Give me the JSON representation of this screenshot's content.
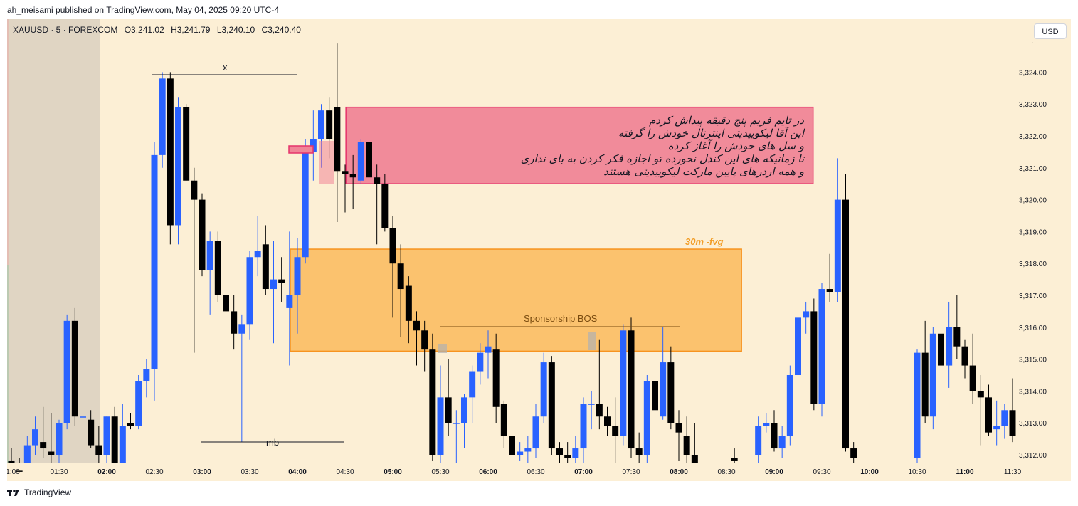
{
  "header": {
    "publisher_line": "ah_meisami published on TradingView.com, May 04, 2025 09:20 UTC-4"
  },
  "symbol": {
    "name": "XAUUSD · 5 · FOREXCOM",
    "open": "O3,241.02",
    "high": "H3,241.79",
    "low": "L3,240.10",
    "close": "C3,240.40"
  },
  "currency_button": "USD",
  "footer": {
    "brand": "TradingView"
  },
  "colors": {
    "background": "#fcefd5",
    "session_shade": "#e0d5c3",
    "bull": "#2962ff",
    "bear": "#000000",
    "pink_zone": "#f08597",
    "pink_border": "#e5336b",
    "orange_zone": "#fbbf68",
    "orange_border": "#f7931e",
    "axis_text": "#131722"
  },
  "annotations": {
    "persian_lines": [
      "در تایم فریم پنج دقیقه پیداش کردم",
      "این آقا لیکوییدیتی اینترنال خودش را گرفته",
      "و سل های خودش را آغاز کرده",
      "تا زمانیکه های این کندل نخورده تو اجازه فکر کردن به بای نداری",
      "و همه اردرهای پایین مارکت لیکوییدیتی هستند"
    ],
    "fvg_label": "30m -fvg",
    "bos_label": "Sponsorship BOS",
    "x_label": "x",
    "mb_label": "mb"
  },
  "chart_data": {
    "type": "candlestick",
    "symbol": "XAUUSD",
    "interval": "5",
    "price_axis": {
      "ticks": [
        "3,312.00",
        "3,313.00",
        "3,314.00",
        "3,315.00",
        "3,316.00",
        "3,317.00",
        "3,318.00",
        "3,319.00",
        "3,320.00",
        "3,321.00",
        "3,322.00",
        "3,323.00",
        "3,324.00"
      ],
      "ylim": [
        3311.8,
        3325.2
      ]
    },
    "time_axis": {
      "ticks": [
        "1:00",
        "01:30",
        "02:00",
        "02:30",
        "03:00",
        "03:30",
        "04:00",
        "04:30",
        "05:00",
        "05:30",
        "06:00",
        "06:30",
        "07:00",
        "07:30",
        "08:00",
        "08:30",
        "09:00",
        "09:30",
        "10:00",
        "10:30",
        "11:00",
        "11:30"
      ]
    },
    "candles": [
      [
        "00:55",
        3312.8,
        3313.0,
        3311.5,
        3311.8
      ],
      [
        "01:00",
        3311.8,
        3312.2,
        3311.3,
        3311.6
      ],
      [
        "01:05",
        3311.5,
        3311.9,
        3311.2,
        3311.4
      ],
      [
        "01:10",
        3311.4,
        3312.6,
        3311.2,
        3312.3
      ],
      [
        "01:15",
        3312.3,
        3313.2,
        3312.0,
        3312.8
      ],
      [
        "01:20",
        3312.4,
        3313.5,
        3311.9,
        3312.2
      ],
      [
        "01:25",
        3312.1,
        3313.3,
        3311.5,
        3312.0
      ],
      [
        "01:30",
        3312.0,
        3313.1,
        3311.4,
        3313.0
      ],
      [
        "01:35",
        3313.0,
        3316.4,
        3312.8,
        3316.2
      ],
      [
        "01:40",
        3316.2,
        3316.6,
        3312.9,
        3313.2
      ],
      [
        "01:45",
        3313.2,
        3313.5,
        3312.9,
        3313.2
      ],
      [
        "01:50",
        3313.1,
        3313.4,
        3312.2,
        3312.3
      ],
      [
        "01:55",
        3312.3,
        3312.9,
        3311.6,
        3312.0
      ],
      [
        "02:00",
        3312.0,
        3313.2,
        3311.5,
        3313.2
      ],
      [
        "02:05",
        3313.2,
        3313.5,
        3311.3,
        3311.5
      ],
      [
        "02:10",
        3311.6,
        3313.6,
        3311.4,
        3312.9
      ],
      [
        "02:15",
        3313.0,
        3313.3,
        3312.8,
        3312.9
      ],
      [
        "02:20",
        3312.9,
        3314.5,
        3312.8,
        3314.3
      ],
      [
        "02:25",
        3314.3,
        3315.0,
        3313.8,
        3314.7
      ],
      [
        "02:30",
        3314.7,
        3321.8,
        3313.7,
        3321.4
      ],
      [
        "02:35",
        3321.4,
        3324.0,
        3321.0,
        3323.8
      ],
      [
        "02:40",
        3323.8,
        3324.0,
        3318.6,
        3319.2
      ],
      [
        "02:45",
        3319.2,
        3323.2,
        3318.6,
        3322.9
      ],
      [
        "02:50",
        3322.9,
        3323.0,
        3320.6,
        3320.6
      ],
      [
        "02:55",
        3320.6,
        3321.0,
        3315.2,
        3320.0
      ],
      [
        "03:00",
        3320.0,
        3320.2,
        3317.6,
        3317.8
      ],
      [
        "03:05",
        3317.8,
        3319.0,
        3316.4,
        3318.7
      ],
      [
        "03:10",
        3318.7,
        3319.0,
        3316.8,
        3317.0
      ],
      [
        "03:15",
        3317.0,
        3317.6,
        3315.6,
        3316.5
      ],
      [
        "03:20",
        3316.5,
        3317.0,
        3315.3,
        3315.8
      ],
      [
        "03:25",
        3315.8,
        3316.4,
        3312.4,
        3316.1
      ],
      [
        "03:30",
        3316.1,
        3318.4,
        3315.6,
        3318.2
      ],
      [
        "03:35",
        3318.2,
        3319.5,
        3317.6,
        3318.4
      ],
      [
        "03:40",
        3318.6,
        3319.2,
        3317.0,
        3317.2
      ],
      [
        "03:45",
        3317.2,
        3318.7,
        3315.5,
        3317.5
      ],
      [
        "03:50",
        3317.5,
        3318.2,
        3316.8,
        3317.4
      ],
      [
        "03:55",
        3316.6,
        3319.0,
        3314.8,
        3317.0
      ],
      [
        "04:00",
        3317.0,
        3318.8,
        3315.8,
        3318.2
      ],
      [
        "04:05",
        3318.2,
        3321.9,
        3318.0,
        3321.5
      ],
      [
        "04:10",
        3321.5,
        3322.8,
        3320.6,
        3321.9
      ],
      [
        "04:15",
        3321.9,
        3323.0,
        3321.0,
        3322.8
      ],
      [
        "04:20",
        3322.8,
        3323.2,
        3321.3,
        3321.9
      ],
      [
        "04:25",
        3322.9,
        3324.9,
        3319.3,
        3320.9
      ],
      [
        "04:30",
        3320.9,
        3321.1,
        3319.6,
        3320.8
      ],
      [
        "04:35",
        3320.8,
        3321.4,
        3319.7,
        3320.7
      ],
      [
        "04:40",
        3320.6,
        3321.9,
        3320.5,
        3321.8
      ],
      [
        "04:45",
        3321.8,
        3322.2,
        3320.4,
        3320.7
      ],
      [
        "04:50",
        3320.7,
        3321.1,
        3318.6,
        3320.5
      ],
      [
        "04:55",
        3320.5,
        3320.8,
        3319.0,
        3319.1
      ],
      [
        "05:00",
        3319.1,
        3319.5,
        3316.3,
        3318.0
      ],
      [
        "05:05",
        3318.0,
        3318.6,
        3315.7,
        3317.2
      ],
      [
        "05:10",
        3317.3,
        3317.6,
        3315.5,
        3316.2
      ],
      [
        "05:15",
        3316.2,
        3316.5,
        3314.8,
        3315.9
      ],
      [
        "05:20",
        3315.9,
        3316.2,
        3314.6,
        3315.3
      ],
      [
        "05:25",
        3315.3,
        3315.8,
        3311.8,
        3312.0
      ],
      [
        "05:30",
        3312.0,
        3314.8,
        3311.5,
        3313.8
      ],
      [
        "05:35",
        3313.8,
        3315.0,
        3312.6,
        3313.0
      ],
      [
        "05:40",
        3313.0,
        3313.4,
        3311.7,
        3313.0
      ],
      [
        "05:45",
        3313.0,
        3313.9,
        3312.2,
        3313.8
      ],
      [
        "05:50",
        3313.8,
        3314.8,
        3313.0,
        3314.6
      ],
      [
        "05:55",
        3314.6,
        3315.5,
        3314.2,
        3315.2
      ],
      [
        "06:00",
        3315.2,
        3315.9,
        3314.4,
        3315.4
      ],
      [
        "06:05",
        3315.3,
        3315.8,
        3313.0,
        3313.5
      ],
      [
        "06:10",
        3313.6,
        3313.7,
        3312.2,
        3312.6
      ],
      [
        "06:15",
        3312.6,
        3312.8,
        3311.6,
        3312.0
      ],
      [
        "06:20",
        3312.0,
        3312.4,
        3311.8,
        3312.1
      ],
      [
        "06:25",
        3312.1,
        3312.6,
        3311.5,
        3312.2
      ],
      [
        "06:30",
        3312.2,
        3313.6,
        3311.9,
        3313.2
      ],
      [
        "06:35",
        3313.2,
        3315.2,
        3313.0,
        3314.9
      ],
      [
        "06:40",
        3314.9,
        3315.1,
        3312.0,
        3312.2
      ],
      [
        "06:45",
        3312.2,
        3312.4,
        3311.7,
        3312.0
      ],
      [
        "06:50",
        3312.0,
        3312.4,
        3311.5,
        3311.9
      ],
      [
        "06:55",
        3311.9,
        3312.6,
        3311.5,
        3312.2
      ],
      [
        "07:00",
        3312.2,
        3313.8,
        3311.6,
        3313.6
      ],
      [
        "07:05",
        3313.6,
        3314.0,
        3312.8,
        3313.6
      ],
      [
        "07:10",
        3313.6,
        3315.6,
        3312.8,
        3313.2
      ],
      [
        "07:15",
        3313.2,
        3313.5,
        3312.6,
        3312.9
      ],
      [
        "07:20",
        3312.9,
        3313.8,
        3311.6,
        3312.6
      ],
      [
        "07:25",
        3312.6,
        3316.1,
        3312.3,
        3315.9
      ],
      [
        "07:30",
        3315.9,
        3316.3,
        3311.9,
        3312.2
      ],
      [
        "07:35",
        3312.2,
        3312.7,
        3311.5,
        3312.0
      ],
      [
        "07:40",
        3312.0,
        3314.5,
        3311.7,
        3314.3
      ],
      [
        "07:45",
        3314.3,
        3314.7,
        3312.9,
        3313.4
      ],
      [
        "07:50",
        3313.2,
        3316.0,
        3313.1,
        3314.9
      ],
      [
        "07:55",
        3314.9,
        3315.4,
        3312.8,
        3313.0
      ],
      [
        "08:00",
        3313.0,
        3313.4,
        3311.8,
        3312.7
      ],
      [
        "08:05",
        3312.6,
        3313.2,
        3311.7,
        3312.0
      ],
      [
        "08:10",
        3312.0,
        3313.0,
        3311.6,
        3311.7
      ],
      [
        "08:35",
        3311.9,
        3312.2,
        3311.6,
        3311.8
      ],
      [
        "08:50",
        3312.0,
        3313.2,
        3311.6,
        3312.9
      ],
      [
        "08:55",
        3312.9,
        3313.3,
        3312.7,
        3313.0
      ],
      [
        "09:00",
        3313.0,
        3313.4,
        3312.1,
        3312.2
      ],
      [
        "09:05",
        3312.2,
        3312.9,
        3311.9,
        3312.6
      ],
      [
        "09:10",
        3312.6,
        3314.8,
        3312.3,
        3314.5
      ],
      [
        "09:15",
        3314.5,
        3316.9,
        3314.0,
        3316.3
      ],
      [
        "09:20",
        3316.3,
        3316.8,
        3315.8,
        3316.5
      ],
      [
        "09:25",
        3316.5,
        3316.9,
        3313.4,
        3313.6
      ],
      [
        "09:30",
        3313.6,
        3317.4,
        3313.2,
        3317.2
      ],
      [
        "09:35",
        3317.2,
        3318.3,
        3316.8,
        3317.1
      ],
      [
        "09:40",
        3317.1,
        3321.3,
        3316.8,
        3320.0
      ],
      [
        "09:45",
        3320.0,
        3320.8,
        3312.1,
        3312.2
      ],
      [
        "09:50",
        3312.2,
        3312.4,
        3311.7,
        3311.9
      ],
      [
        "10:30",
        3311.9,
        3315.3,
        3311.5,
        3315.2
      ],
      [
        "10:35",
        3315.2,
        3316.2,
        3313.0,
        3313.2
      ],
      [
        "10:40",
        3313.2,
        3316.0,
        3312.8,
        3315.8
      ],
      [
        "10:45",
        3315.8,
        3316.2,
        3314.4,
        3314.8
      ],
      [
        "10:50",
        3314.8,
        3316.8,
        3314.1,
        3316.0
      ],
      [
        "10:55",
        3316.0,
        3317.0,
        3315.0,
        3315.4
      ],
      [
        "11:00",
        3315.4,
        3315.6,
        3314.4,
        3314.8
      ],
      [
        "11:05",
        3314.8,
        3315.8,
        3313.6,
        3314.0
      ],
      [
        "11:10",
        3314.0,
        3314.5,
        3312.3,
        3313.8
      ],
      [
        "11:15",
        3313.8,
        3314.2,
        3312.6,
        3312.7
      ],
      [
        "11:20",
        3312.8,
        3313.7,
        3312.3,
        3312.9
      ],
      [
        "11:25",
        3312.9,
        3313.6,
        3312.5,
        3313.4
      ],
      [
        "11:30",
        3313.4,
        3314.4,
        3312.4,
        3312.6
      ]
    ],
    "zones": [
      {
        "label": "",
        "color": "#f08597",
        "from": "04:35",
        "to": "09:20",
        "top": 3322.9,
        "bottom": 3320.5
      },
      {
        "label": "30m -fvg",
        "color": "#fbbf68",
        "from": "04:00",
        "to": "08:35",
        "top": 3318.45,
        "bottom": 3315.25
      }
    ]
  }
}
